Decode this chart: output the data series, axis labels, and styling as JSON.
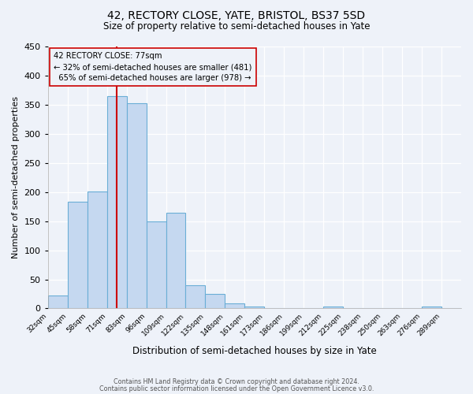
{
  "title_line1": "42, RECTORY CLOSE, YATE, BRISTOL, BS37 5SD",
  "title_line2": "Size of property relative to semi-detached houses in Yate",
  "xlabel": "Distribution of semi-detached houses by size in Yate",
  "ylabel": "Number of semi-detached properties",
  "bin_labels": [
    "32sqm",
    "45sqm",
    "58sqm",
    "71sqm",
    "83sqm",
    "96sqm",
    "109sqm",
    "122sqm",
    "135sqm",
    "148sqm",
    "161sqm",
    "173sqm",
    "186sqm",
    "199sqm",
    "212sqm",
    "225sqm",
    "238sqm",
    "250sqm",
    "263sqm",
    "276sqm",
    "289sqm"
  ],
  "bar_heights": [
    22,
    183,
    201,
    365,
    352,
    150,
    164,
    40,
    25,
    9,
    3,
    1,
    0,
    0,
    3,
    0,
    0,
    0,
    0,
    3,
    0
  ],
  "bar_fill_color": "#c5d8f0",
  "bar_edge_color": "#6aaed6",
  "property_bin_index": 3,
  "property_label": "42 RECTORY CLOSE: 77sqm",
  "pct_smaller": 32,
  "count_smaller": 481,
  "pct_larger": 65,
  "count_larger": 978,
  "annotation_box_edge_color": "#cc0000",
  "vline_color": "#cc0000",
  "vline_x_offset": 0.5,
  "ylim": [
    0,
    450
  ],
  "yticks": [
    0,
    50,
    100,
    150,
    200,
    250,
    300,
    350,
    400,
    450
  ],
  "background_color": "#eef2f9",
  "grid_color": "#ffffff",
  "footer_line1": "Contains HM Land Registry data © Crown copyright and database right 2024.",
  "footer_line2": "Contains public sector information licensed under the Open Government Licence v3.0."
}
